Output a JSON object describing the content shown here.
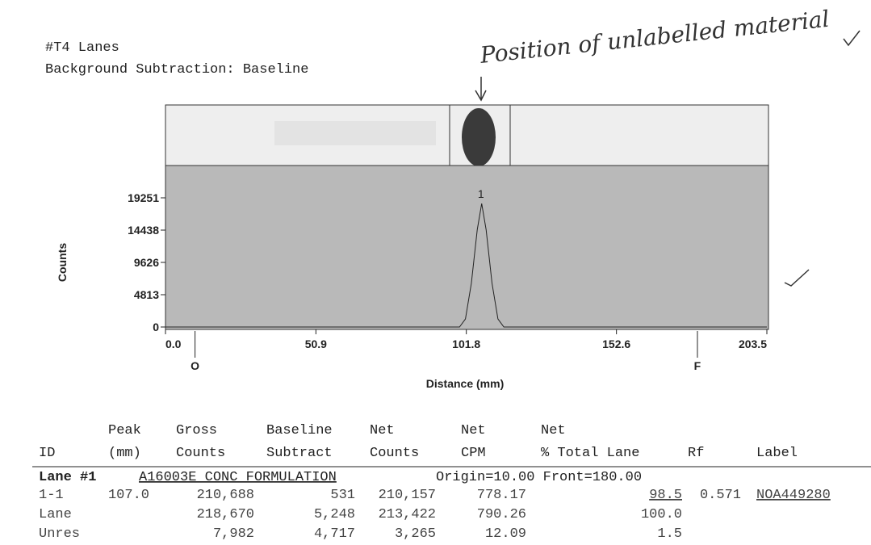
{
  "header": {
    "title": "#T4   Lanes",
    "subtitle": "Background Subtraction: Baseline"
  },
  "handwritten_note": "Position of unlabelled material",
  "chart_data": {
    "type": "line",
    "y_label": "Counts",
    "x_label": "Distance (mm)",
    "xlim": [
      0,
      203.5
    ],
    "ylim": [
      0,
      24064
    ],
    "xticks": [
      {
        "value": 0,
        "label": "0.0"
      },
      50.9,
      101.8,
      152.6,
      203.5
    ],
    "yticks": [
      0,
      4813,
      9626,
      14438,
      19251
    ],
    "series": [
      {
        "name": "1",
        "color": "#222222",
        "x": [
          0,
          99.5,
          101.5,
          103.5,
          105.5,
          107,
          108.5,
          110.5,
          112.5,
          114.5,
          203.5
        ],
        "values": [
          0,
          0,
          1200,
          6500,
          14500,
          18400,
          14500,
          6500,
          1200,
          0,
          0
        ]
      }
    ],
    "markers": [
      {
        "label": "O",
        "x": 10
      },
      {
        "label": "F",
        "x": 180
      }
    ]
  },
  "table": {
    "headers": [
      [
        "ID"
      ],
      [
        "Peak",
        "(mm)"
      ],
      [
        "Gross",
        "Counts"
      ],
      [
        "Baseline",
        "Subtract"
      ],
      [
        "Net",
        "Counts"
      ],
      [
        "Net",
        "CPM"
      ],
      [
        "Net",
        "% Total Lane"
      ],
      [
        "Rf"
      ],
      [
        "Label"
      ]
    ],
    "lane": {
      "id": "Lane #1",
      "name": "A16003E CONC FORMULATION",
      "info": "Origin=10.00 Front=180.00"
    },
    "rows": [
      [
        "1-1",
        "107.0",
        "210,688",
        "531",
        "210,157",
        "778.17",
        "98.5",
        "0.571",
        "NOA449280"
      ],
      [
        "Lane",
        null,
        "218,670",
        "5,248",
        "213,422",
        "790.26",
        "100.0",
        null,
        null
      ],
      [
        "Unres",
        null,
        "7,982",
        "4,717",
        "3,265",
        "12.09",
        "1.5",
        null,
        null
      ]
    ]
  }
}
